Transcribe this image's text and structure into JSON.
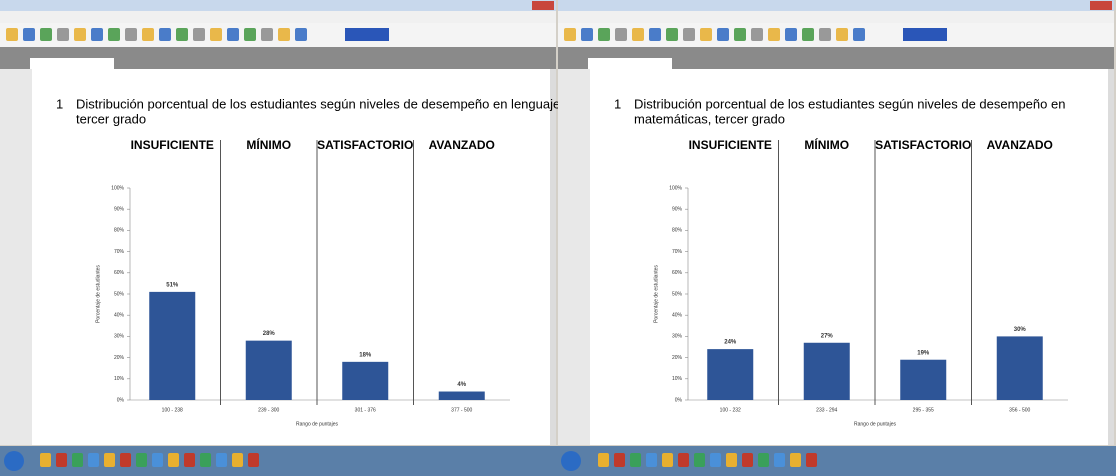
{
  "windows": [
    {
      "chart_data": {
        "type": "bar",
        "number": "1",
        "title": [
          "Distribución porcentual de los estudiantes según niveles de desempeño en lenguaje,",
          "tercer grado"
        ],
        "levels": [
          "INSUFICIENTE",
          "MÍNIMO",
          "SATISFACTORIO",
          "AVANZADO"
        ],
        "categories": [
          "100 - 238",
          "239 - 300",
          "301 - 376",
          "377 - 500"
        ],
        "values": [
          51,
          28,
          18,
          4
        ],
        "value_labels": [
          "51%",
          "28%",
          "18%",
          "4%"
        ],
        "color": "#2e5597",
        "ylabel": "Porcentaje de estudiantes",
        "xlabel": "Rango de puntajes",
        "ylim": [
          0,
          100
        ],
        "yticks": [
          {
            "value": 0,
            "label": "0%"
          },
          {
            "value": 10,
            "label": "10%"
          },
          {
            "value": 20,
            "label": "20%"
          },
          {
            "value": 30,
            "label": "30%"
          },
          {
            "value": 40,
            "label": "40%"
          },
          {
            "value": 50,
            "label": "50%"
          },
          {
            "value": 60,
            "label": "60%"
          },
          {
            "value": 70,
            "label": "70%"
          },
          {
            "value": 80,
            "label": "80%"
          },
          {
            "value": 90,
            "label": "90%"
          },
          {
            "value": 100,
            "label": "100%"
          }
        ]
      }
    },
    {
      "chart_data": {
        "type": "bar",
        "number": "1",
        "title": [
          "Distribución porcentual de los estudiantes según niveles de desempeño en",
          "matemáticas, tercer grado"
        ],
        "levels": [
          "INSUFICIENTE",
          "MÍNIMO",
          "SATISFACTORIO",
          "AVANZADO"
        ],
        "categories": [
          "100 - 232",
          "233 - 294",
          "295 - 355",
          "356 - 500"
        ],
        "values": [
          24,
          27,
          19,
          30
        ],
        "value_labels": [
          "24%",
          "27%",
          "19%",
          "30%"
        ],
        "color": "#2e5597",
        "ylabel": "Porcentaje de estudiantes",
        "xlabel": "Rango de puntajes",
        "ylim": [
          0,
          100
        ],
        "yticks": [
          {
            "value": 0,
            "label": "0%"
          },
          {
            "value": 10,
            "label": "10%"
          },
          {
            "value": 20,
            "label": "20%"
          },
          {
            "value": 30,
            "label": "30%"
          },
          {
            "value": 40,
            "label": "40%"
          },
          {
            "value": 50,
            "label": "50%"
          },
          {
            "value": 60,
            "label": "60%"
          },
          {
            "value": 70,
            "label": "70%"
          },
          {
            "value": 80,
            "label": "80%"
          },
          {
            "value": 90,
            "label": "90%"
          },
          {
            "value": 100,
            "label": "100%"
          }
        ]
      }
    }
  ]
}
